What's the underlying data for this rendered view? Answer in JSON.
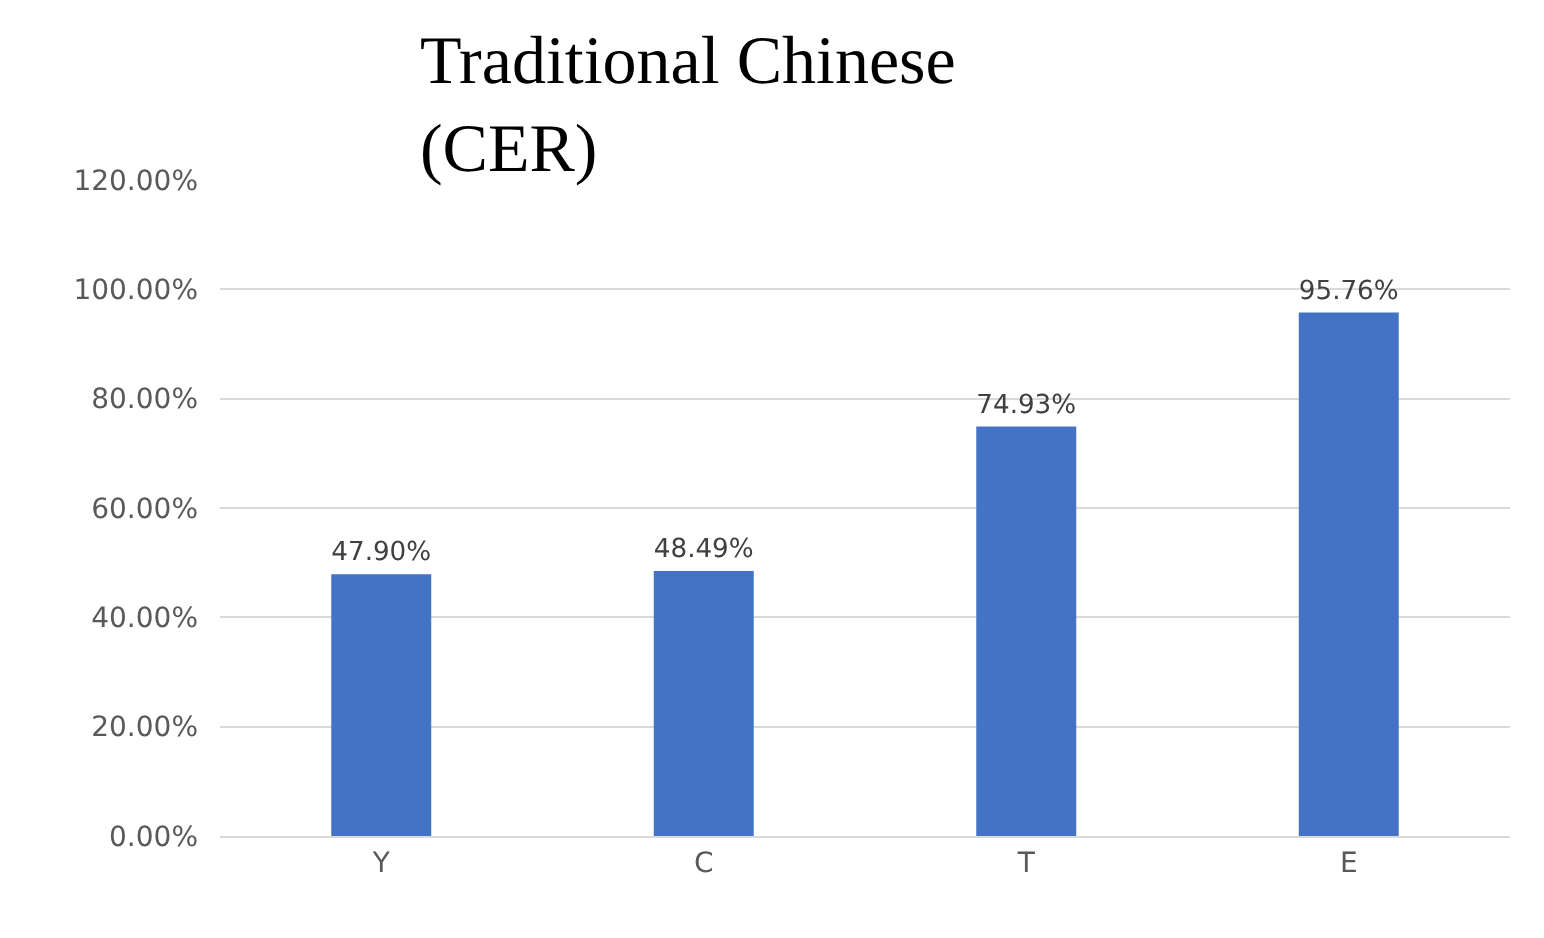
{
  "chart_data": {
    "type": "bar",
    "title": "Traditional Chinese\n(CER)",
    "categories": [
      "Y",
      "C",
      "T",
      "E"
    ],
    "values": [
      47.9,
      48.49,
      74.93,
      95.76
    ],
    "value_labels": [
      "47.90%",
      "48.49%",
      "74.93%",
      "95.76%"
    ],
    "color": "#4472c4",
    "ylim": [
      0,
      120
    ],
    "yticks": [
      {
        "value": 0,
        "label": "0.00%"
      },
      {
        "value": 20,
        "label": "20.00%"
      },
      {
        "value": 40,
        "label": "40.00%"
      },
      {
        "value": 60,
        "label": "60.00%"
      },
      {
        "value": 80,
        "label": "80.00%"
      },
      {
        "value": 100,
        "label": "100.00%"
      },
      {
        "value": 120,
        "label": "120.00%"
      }
    ],
    "grid": "y",
    "legend": false
  }
}
